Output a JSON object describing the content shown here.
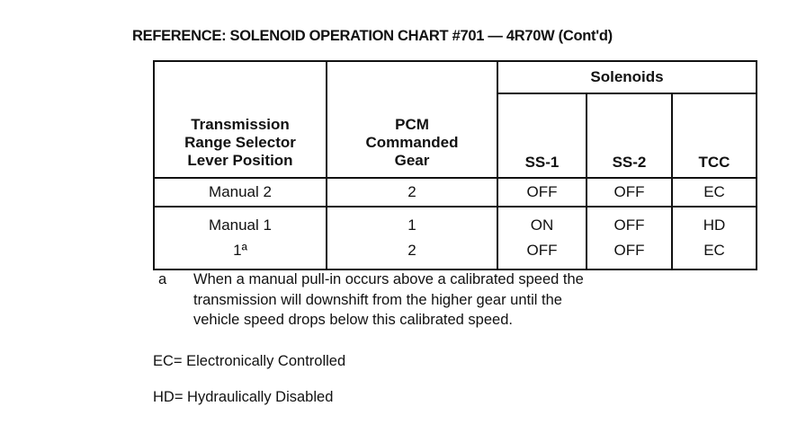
{
  "title": "REFERENCE: SOLENOID OPERATION CHART #701 — 4R70W (Cont'd)",
  "table": {
    "headers": {
      "position": [
        "Transmission",
        "Range Selector",
        "Lever Position"
      ],
      "gear": [
        "PCM",
        "Commanded",
        "Gear"
      ],
      "solenoids": "Solenoids",
      "ss1": "SS-1",
      "ss2": "SS-2",
      "tcc": "TCC"
    },
    "rows": [
      {
        "position": [
          "Manual 2"
        ],
        "gear": [
          "2"
        ],
        "ss1": [
          "OFF"
        ],
        "ss2": [
          "OFF"
        ],
        "tcc": [
          "EC"
        ]
      },
      {
        "position": [
          "Manual 1",
          "1ª"
        ],
        "gear": [
          "1",
          "2"
        ],
        "ss1": [
          "ON",
          "OFF"
        ],
        "ss2": [
          "OFF",
          "OFF"
        ],
        "tcc": [
          "HD",
          "EC"
        ]
      }
    ]
  },
  "footnote": {
    "mark": "a",
    "lines": [
      "When a manual pull-in occurs above a calibrated speed the",
      "transmission will downshift from the higher gear until the",
      "vehicle speed drops below this calibrated speed."
    ]
  },
  "legend": [
    "EC= Electronically  Controlled",
    "HD= Hydraulically  Disabled"
  ]
}
